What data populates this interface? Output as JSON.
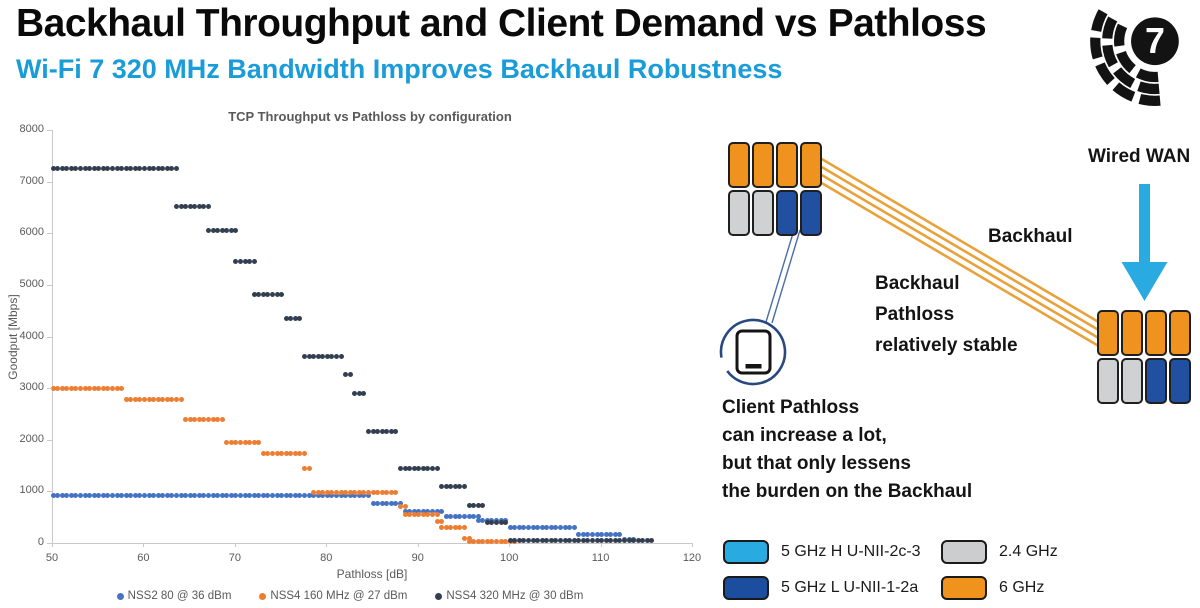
{
  "header": {
    "title": "Backhaul Throughput and Client Demand vs Pathloss",
    "subtitle": "Wi-Fi 7 320 MHz Bandwidth Improves Backhaul Robustness",
    "subtitle_color": "#1A9CD9"
  },
  "logo": {
    "label": "7"
  },
  "chart_data": {
    "type": "scatter",
    "title": "TCP Throughput vs Pathloss by configuration",
    "xlabel": "Pathloss [dB]",
    "ylabel": "Goodput [Mbps]",
    "xlim": [
      50,
      120
    ],
    "ylim": [
      0,
      8000
    ],
    "x_ticks": [
      50,
      60,
      70,
      80,
      90,
      100,
      110,
      120
    ],
    "y_ticks": [
      0,
      1000,
      2000,
      3000,
      4000,
      5000,
      6000,
      7000,
      8000
    ],
    "grid": false,
    "legend_position": "bottom",
    "point_step_db": 0.5,
    "axis_color": "#595959",
    "series": [
      {
        "name": "NSS2 80 @ 36 dBm",
        "color": "#4472C4",
        "segments_x0_x1_y": [
          [
            50,
            84.5,
            930
          ],
          [
            85,
            88,
            770
          ],
          [
            88.5,
            92.5,
            615
          ],
          [
            93,
            96.5,
            505
          ],
          [
            96.5,
            99.5,
            430
          ],
          [
            100,
            107,
            300
          ],
          [
            107.5,
            112,
            175
          ],
          [
            112.5,
            113.5,
            60
          ]
        ]
      },
      {
        "name": "NSS4 160 MHz @ 27 dBm",
        "color": "#ED7D31",
        "segments_x0_x1_y": [
          [
            50,
            57.5,
            3000
          ],
          [
            58,
            64,
            2780
          ],
          [
            64.5,
            68.5,
            2400
          ],
          [
            69,
            72.5,
            1950
          ],
          [
            73,
            77.5,
            1740
          ],
          [
            77.5,
            78,
            1440
          ],
          [
            78.5,
            87.5,
            980
          ],
          [
            88,
            88.5,
            700
          ],
          [
            88.5,
            92,
            560
          ],
          [
            92,
            92.5,
            420
          ],
          [
            92.5,
            95,
            300
          ],
          [
            95,
            95.5,
            90
          ],
          [
            95.5,
            100.5,
            30
          ]
        ]
      },
      {
        "name": "NSS4 320 MHz @ 30 dBm",
        "color": "#333F50",
        "segments_x0_x1_y": [
          [
            50,
            63.5,
            7250
          ],
          [
            63.5,
            67,
            6520
          ],
          [
            67,
            70,
            6050
          ],
          [
            70,
            72,
            5450
          ],
          [
            72,
            75,
            4820
          ],
          [
            75.5,
            77,
            4350
          ],
          [
            77.5,
            81.5,
            3620
          ],
          [
            82,
            82.5,
            3270
          ],
          [
            83,
            84,
            2900
          ],
          [
            84.5,
            87.5,
            2170
          ],
          [
            88,
            92,
            1450
          ],
          [
            92.5,
            95,
            1090
          ],
          [
            95.5,
            97,
            720
          ],
          [
            97.5,
            99.5,
            400
          ],
          [
            100,
            115.5,
            55
          ]
        ]
      }
    ]
  },
  "diagram": {
    "wired_wan_label": "Wired WAN",
    "backhaul_label": "Backhaul",
    "backhaul_note_lines": [
      "Backhaul",
      "Pathloss",
      "relatively stable"
    ],
    "client_note_lines": [
      "Client Pathloss",
      "can increase a lot,",
      "but that only lessens",
      "the burden on the Backhaul"
    ],
    "arrow_color": "#29ABE2",
    "backhaul_line_color": "#E8A23B",
    "client_line_color": "#4A6DA8",
    "client_circle_color": "#27497F",
    "module_colors": {
      "orange": "#F0921E",
      "gray": "#D0D1D2",
      "blue": "#2150A0"
    },
    "ap_pattern": [
      "orange",
      "orange",
      "orange",
      "orange",
      "gray",
      "gray",
      "blue",
      "blue"
    ],
    "legend": [
      {
        "color": "#29ABE2",
        "label": "5 GHz H U-NII-2c-3"
      },
      {
        "color": "#1C4EA0",
        "label": "5 GHz L U-NII-1-2a"
      },
      {
        "color": "#CCCDCE",
        "label": "2.4 GHz"
      },
      {
        "color": "#F0931D",
        "label": "6 GHz"
      }
    ]
  }
}
